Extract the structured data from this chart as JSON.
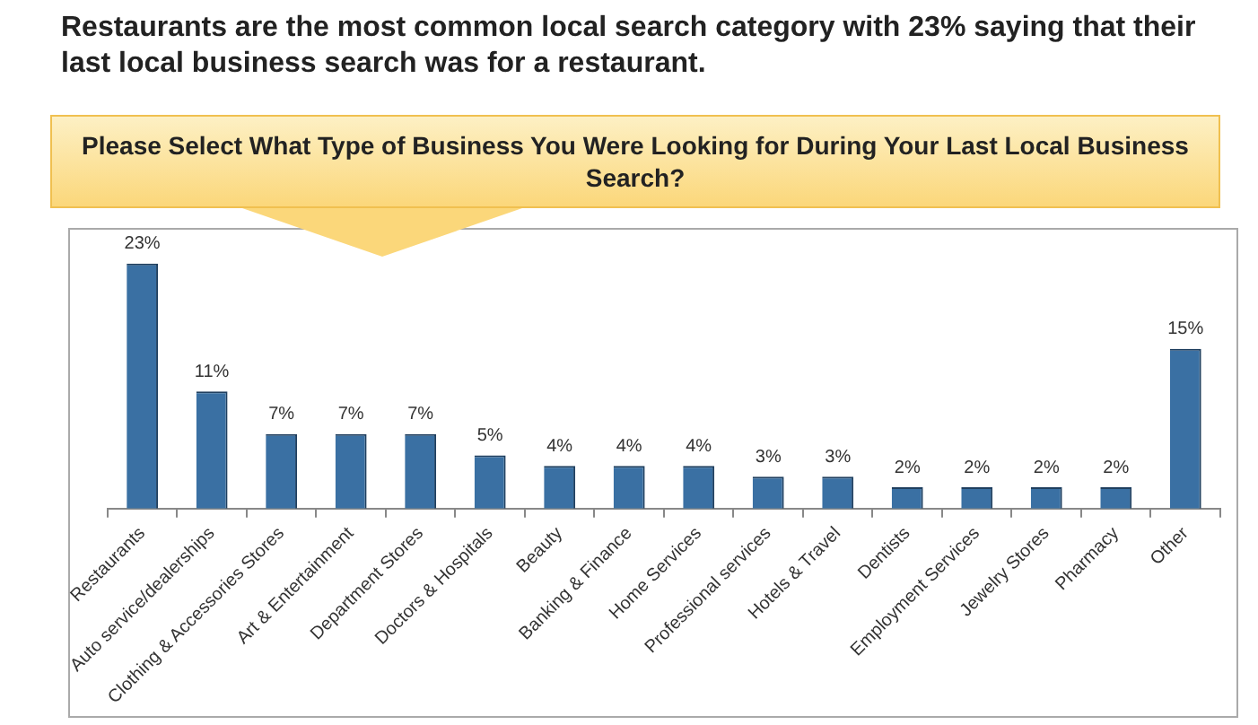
{
  "chart_data": {
    "type": "bar",
    "title": "Restaurants are the most common local search category with 23% saying that their last local business search was for a restaurant.",
    "subtitle": "Please Select What Type of Business You Were Looking for During Your Last Local Business Search?",
    "categories": [
      "Restaurants",
      "Auto service/dealerships",
      "Clothing & Accessories Stores",
      "Art & Entertainment",
      "Department Stores",
      "Doctors & Hospitals",
      "Beauty",
      "Banking & Finance",
      "Home Services",
      "Professional services",
      "Hotels & Travel",
      "Dentists",
      "Employment Services",
      "Jewelry Stores",
      "Pharmacy",
      "Other"
    ],
    "values": [
      23,
      11,
      7,
      7,
      7,
      5,
      4,
      4,
      4,
      3,
      3,
      2,
      2,
      2,
      2,
      15
    ],
    "value_labels": [
      "23%",
      "11%",
      "7%",
      "7%",
      "7%",
      "5%",
      "4%",
      "4%",
      "4%",
      "3%",
      "3%",
      "2%",
      "2%",
      "2%",
      "2%",
      "15%"
    ],
    "color": "#3a70a3",
    "grid": false,
    "legend": false
  }
}
